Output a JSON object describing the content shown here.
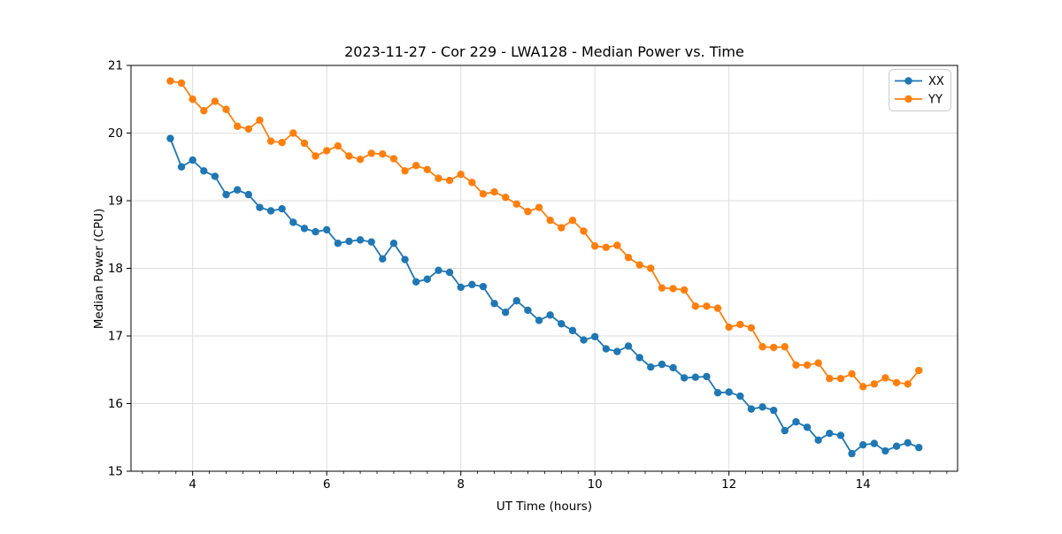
{
  "chart_data": {
    "type": "line",
    "title": "2023-11-27 - Cor 229 - LWA128 - Median Power vs. Time",
    "xlabel": "UT Time (hours)",
    "ylabel": "Median Power (CPU)",
    "xlim": [
      3.08,
      15.41
    ],
    "ylim": [
      15,
      21
    ],
    "xticks": [
      4,
      6,
      8,
      10,
      12,
      14
    ],
    "yticks": [
      15,
      16,
      17,
      18,
      19,
      20,
      21
    ],
    "x_minor_step": 0.25,
    "grid": true,
    "legend_position": "upper right",
    "x": [
      3.667,
      3.833,
      4.0,
      4.167,
      4.333,
      4.5,
      4.667,
      4.833,
      5.0,
      5.167,
      5.333,
      5.5,
      5.667,
      5.833,
      6.0,
      6.167,
      6.333,
      6.5,
      6.667,
      6.833,
      7.0,
      7.167,
      7.333,
      7.5,
      7.667,
      7.833,
      8.0,
      8.167,
      8.333,
      8.5,
      8.667,
      8.833,
      9.0,
      9.167,
      9.333,
      9.5,
      9.667,
      9.833,
      10.0,
      10.167,
      10.333,
      10.5,
      10.667,
      10.833,
      11.0,
      11.167,
      11.333,
      11.5,
      11.667,
      11.833,
      12.0,
      12.167,
      12.333,
      12.5,
      12.667,
      12.833,
      13.0,
      13.167,
      13.333,
      13.5,
      13.667,
      13.833,
      14.0,
      14.167,
      14.333,
      14.5,
      14.667,
      14.833
    ],
    "series": [
      {
        "name": "XX",
        "color": "#1f77b4",
        "values": [
          19.92,
          19.5,
          19.6,
          19.44,
          19.36,
          19.09,
          19.16,
          19.09,
          18.9,
          18.85,
          18.88,
          18.68,
          18.59,
          18.54,
          18.57,
          18.37,
          18.4,
          18.42,
          18.39,
          18.14,
          18.37,
          18.13,
          17.8,
          17.84,
          17.97,
          17.94,
          17.72,
          17.76,
          17.73,
          17.48,
          17.35,
          17.52,
          17.38,
          17.23,
          17.31,
          17.18,
          17.08,
          16.94,
          16.99,
          16.81,
          16.77,
          16.85,
          16.68,
          16.54,
          16.58,
          16.53,
          16.38,
          16.39,
          16.4,
          16.16,
          16.17,
          16.11,
          15.92,
          15.95,
          15.9,
          15.6,
          15.73,
          15.65,
          15.46,
          15.56,
          15.53,
          15.26,
          15.39,
          15.41,
          15.3,
          15.37,
          15.42,
          15.35
        ]
      },
      {
        "name": "YY",
        "color": "#ff7f0e",
        "values": [
          20.77,
          20.74,
          20.5,
          20.33,
          20.47,
          20.35,
          20.1,
          20.06,
          20.19,
          19.88,
          19.86,
          20.0,
          19.85,
          19.66,
          19.74,
          19.81,
          19.66,
          19.61,
          19.7,
          19.69,
          19.62,
          19.44,
          19.52,
          19.46,
          19.33,
          19.3,
          19.39,
          19.27,
          19.1,
          19.13,
          19.05,
          18.95,
          18.84,
          18.9,
          18.71,
          18.6,
          18.71,
          18.55,
          18.33,
          18.31,
          18.34,
          18.16,
          18.05,
          18.0,
          17.71,
          17.7,
          17.68,
          17.44,
          17.44,
          17.41,
          17.13,
          17.17,
          17.12,
          16.84,
          16.83,
          16.84,
          16.57,
          16.57,
          16.6,
          16.37,
          16.37,
          16.44,
          16.25,
          16.29,
          16.38,
          16.31,
          16.29,
          16.49
        ]
      }
    ]
  },
  "colors": {
    "grid": "#dddddd",
    "spine": "#000000",
    "tick": "#000000",
    "legend_border": "#cccccc",
    "legend_bg": "#ffffff"
  }
}
